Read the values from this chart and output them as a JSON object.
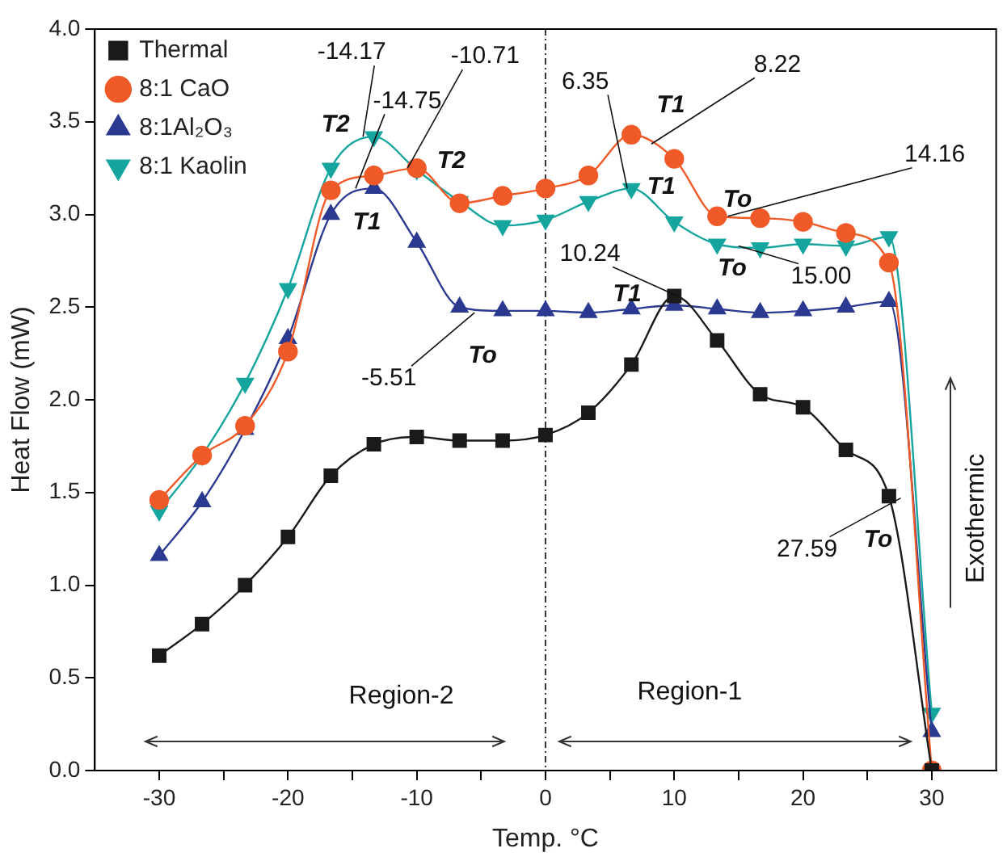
{
  "chart_data": {
    "type": "line",
    "xlabel": "Temp. °C",
    "ylabel": "Heat Flow (mW)",
    "y2label": "Exothermic",
    "x": [
      -30,
      -26.67,
      -23.33,
      -20,
      -16.67,
      -13.33,
      -10,
      -6.67,
      -3.33,
      0,
      3.33,
      6.67,
      10,
      13.33,
      16.67,
      20,
      23.33,
      26.67,
      30
    ],
    "series": [
      {
        "name": "Thermal",
        "color": "#1a1a1a",
        "marker": "square",
        "values": [
          0.62,
          0.79,
          1.0,
          1.26,
          1.59,
          1.76,
          1.8,
          1.78,
          1.78,
          1.81,
          1.93,
          2.19,
          2.56,
          2.32,
          2.03,
          1.96,
          1.73,
          1.48,
          0
        ]
      },
      {
        "name": "8:1 CaO",
        "color": "#f05a28",
        "marker": "circle",
        "values": [
          1.46,
          1.7,
          1.86,
          2.26,
          3.13,
          3.21,
          3.25,
          3.06,
          3.1,
          3.14,
          3.21,
          3.43,
          3.3,
          2.99,
          2.98,
          2.96,
          2.9,
          2.74,
          0
        ]
      },
      {
        "name": "8:1Al₂O₃",
        "color": "#2b3990",
        "marker": "triangle",
        "values": [
          1.16,
          1.45,
          1.84,
          2.33,
          3.0,
          3.14,
          2.85,
          2.5,
          2.48,
          2.48,
          2.47,
          2.49,
          2.51,
          2.49,
          2.47,
          2.48,
          2.5,
          2.53,
          0.21
        ]
      },
      {
        "name": "8:1 Kaolin",
        "color": "#16a59e",
        "marker": "triangle-down",
        "values": [
          1.4,
          1.7,
          2.09,
          2.6,
          3.25,
          3.42,
          3.24,
          3.07,
          2.94,
          2.97,
          3.07,
          3.14,
          2.96,
          2.84,
          2.82,
          2.84,
          2.83,
          2.88,
          0.31
        ]
      }
    ],
    "xlim": [
      -35,
      35
    ],
    "xticks": [
      -30,
      {
        "value": -25,
        "label": null
      },
      -20,
      {
        "value": -15,
        "label": null
      },
      -10,
      {
        "value": -5,
        "label": null
      },
      0,
      {
        "value": 5,
        "label": null
      },
      10,
      {
        "value": 15,
        "label": null
      },
      20,
      {
        "value": 25,
        "label": null
      },
      30
    ],
    "ylim": [
      0,
      4
    ],
    "yticks": [
      {
        "value": 0,
        "label": "0.0"
      },
      0.5,
      {
        "value": 1,
        "label": "1.0"
      },
      1.5,
      {
        "value": 2,
        "label": "2.0"
      },
      2.5,
      {
        "value": 3,
        "label": "3.0"
      },
      3.5,
      {
        "value": 4,
        "label": "4.0"
      }
    ],
    "ref_lines": [
      {
        "axis": "x",
        "value": 0,
        "line_style": "dotted",
        "color": "#333333"
      }
    ],
    "annotations": [
      {
        "text": "-14.17",
        "x": -14.17,
        "y": 3.42
      },
      {
        "text": "-10.71",
        "x": -10.71,
        "y": 3.25
      },
      {
        "text": "-14.75",
        "x": -14.75,
        "y": 3.14
      },
      {
        "text": "T2",
        "x": -14.17,
        "y": 3.42
      },
      {
        "text": "T2",
        "x": -10.71,
        "y": 3.25
      },
      {
        "text": "T1",
        "x": -14.75,
        "y": 3.14
      },
      {
        "text": "To",
        "x": -5.51,
        "y": 2.47
      },
      {
        "text": "-5.51",
        "x": -5.51,
        "y": 2.47
      },
      {
        "text": "6.35",
        "x": 6.35,
        "y": 3.14
      },
      {
        "text": "T1",
        "x": 6.35,
        "y": 3.14
      },
      {
        "text": "8.22",
        "x": 8.22,
        "y": 3.38
      },
      {
        "text": "T1",
        "x": 8.22,
        "y": 3.38
      },
      {
        "text": "14.16",
        "x": 14.16,
        "y": 2.99
      },
      {
        "text": "To",
        "x": 14.16,
        "y": 2.99
      },
      {
        "text": "15.00",
        "x": 15.0,
        "y": 2.83
      },
      {
        "text": "To",
        "x": 15.0,
        "y": 2.83
      },
      {
        "text": "10.24",
        "x": 10.24,
        "y": 2.56
      },
      {
        "text": "T1",
        "x": 10.24,
        "y": 2.56
      },
      {
        "text": "27.59",
        "x": 27.59,
        "y": 1.47
      },
      {
        "text": "To",
        "x": 27.59,
        "y": 1.47
      },
      "Region-2",
      "Region-1"
    ],
    "legend": "top left",
    "grid": false,
    "line_style": "solid"
  }
}
